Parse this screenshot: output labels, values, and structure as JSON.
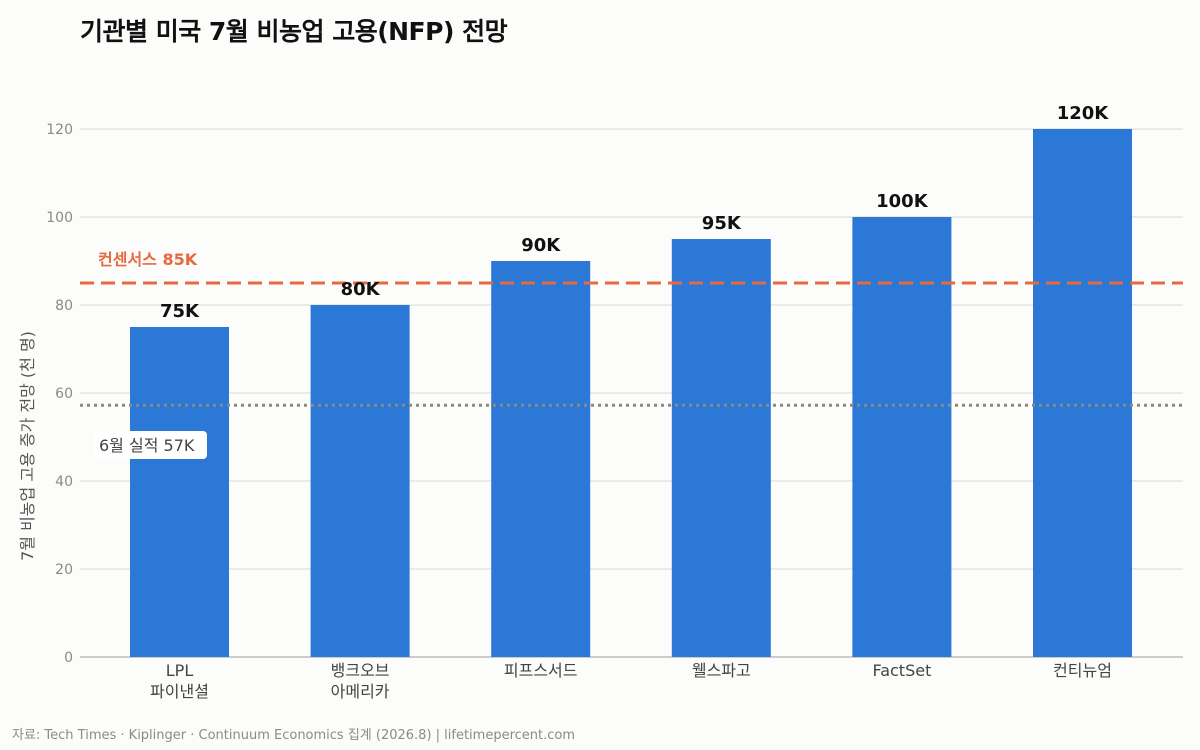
{
  "title": "기관별 미국 7월 비농업 고용(NFP) 전망",
  "source": "자료: Tech Times · Kiplinger · Continuum Economics 집계 (2026.8) | lifetimepercent.com",
  "colors": {
    "bar": "#2b78d6",
    "consensus": "#e8683f",
    "actual": "#8a8a8a",
    "grid": "#e3e3e3",
    "axis": "#bbbbbb"
  },
  "chart_data": {
    "type": "bar",
    "categories": [
      [
        "LPL",
        "파이낸셜"
      ],
      [
        "뱅크오브",
        "아메리카"
      ],
      [
        "피프스서드"
      ],
      [
        "웰스파고"
      ],
      [
        "FactSet"
      ],
      [
        "컨티뉴엄"
      ]
    ],
    "values": [
      75,
      80,
      90,
      95,
      100,
      120
    ],
    "value_labels": [
      "75K",
      "80K",
      "90K",
      "95K",
      "100K",
      "120K"
    ],
    "ylabel": "7월 비농업 고용 증가 전망 (천 명)",
    "xlabel": "",
    "ylim": [
      0,
      130
    ],
    "yticks": [
      0,
      20,
      40,
      60,
      80,
      100,
      120
    ],
    "grid": true,
    "reference_lines": [
      {
        "value": 85,
        "label": "컨센서스 85K",
        "style": "dashed"
      },
      {
        "value": 57,
        "label": "6월 실적 57K",
        "style": "dotted"
      }
    ]
  }
}
